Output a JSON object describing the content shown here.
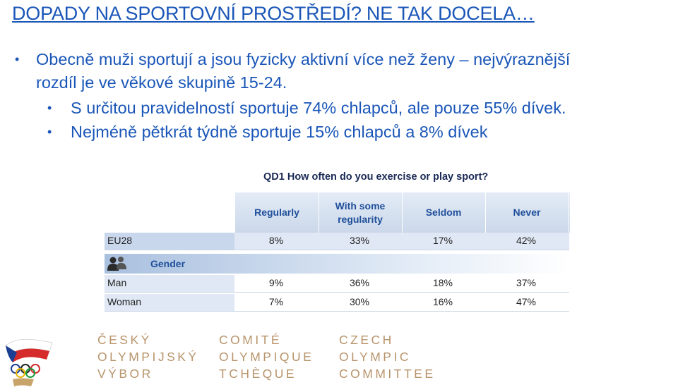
{
  "title": "DOPADY NA SPORTOVNÍ PROSTŘEDÍ? NE TAK DOCELA…",
  "bullets": {
    "main_line1": "Obecně muži sportují a jsou fyzicky aktivní více než ženy – nejvýraznější",
    "main_line2": "rozdíl je ve věkové skupině 15-24.",
    "sub1": "S určitou pravidelností sportuje 74% chlapců, ale pouze 55% dívek.",
    "sub2": "Nejméně pětkrát týdně sportuje 15% chlapců a 8% dívek",
    "bullet_char": "•"
  },
  "survey": {
    "question": "QD1 How often do you exercise or play sport?",
    "columns": [
      "Regularly",
      "With some regularity",
      "Seldom",
      "Never"
    ],
    "rows": [
      {
        "label": "EU28",
        "values": [
          "8%",
          "33%",
          "17%",
          "42%"
        ]
      },
      {
        "label": "Man",
        "values": [
          "9%",
          "36%",
          "18%",
          "37%"
        ]
      },
      {
        "label": "Woman",
        "values": [
          "7%",
          "30%",
          "16%",
          "47%"
        ]
      }
    ],
    "group_label": "Gender"
  },
  "committee": {
    "cz": [
      "ČESKÝ",
      "OLYMPIJSKÝ",
      "VÝBOR"
    ],
    "fr": [
      "COMITÉ",
      "OLYMPIQUE",
      "TCHÈQUE"
    ],
    "en": [
      "CZECH",
      "OLYMPIC",
      "COMMITTEE"
    ]
  },
  "colors": {
    "text_blue": "#1a56b8",
    "committee_gold": "#b8946b",
    "header_blue": "#1f4f9a"
  }
}
